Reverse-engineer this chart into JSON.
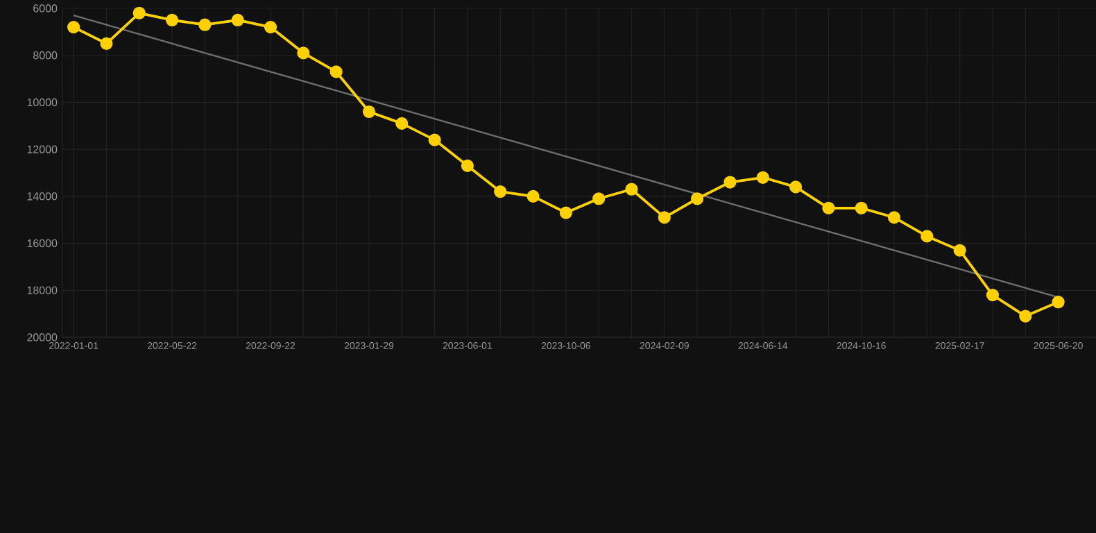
{
  "chart_data": {
    "type": "line",
    "categories": [
      "2022-01-01",
      null,
      null,
      "2022-05-22",
      null,
      null,
      "2022-09-22",
      null,
      null,
      "2023-01-29",
      null,
      null,
      "2023-06-01",
      null,
      null,
      "2023-10-06",
      null,
      null,
      "2024-02-09",
      null,
      null,
      "2024-06-14",
      null,
      null,
      "2024-10-16",
      null,
      null,
      "2025-02-17",
      null,
      null,
      "2025-06-20"
    ],
    "series": [
      {
        "color": "#ffd000",
        "values": [
          6800,
          7500,
          6200,
          6500,
          6700,
          6500,
          6800,
          7900,
          8700,
          10400,
          10900,
          11600,
          12700,
          13800,
          14000,
          14700,
          14100,
          13700,
          14900,
          14100,
          13400,
          13200,
          13600,
          14500,
          14500,
          14900,
          15700,
          16300,
          18200,
          19100,
          18500
        ]
      },
      {
        "type": "line",
        "color": "#6e6e6e",
        "marker": "none",
        "values": [
          6300,
          6700,
          7100,
          7500,
          7900,
          8300,
          8700,
          9100,
          9500,
          9900,
          10300,
          10700,
          11100,
          11500,
          11900,
          12300,
          12700,
          13100,
          13500,
          13900,
          14300,
          14700,
          15100,
          15500,
          15900,
          16300,
          16700,
          17100,
          17500,
          17900,
          18300
        ]
      }
    ],
    "ylim": [
      20000,
      6000
    ],
    "yticks": [
      6000,
      8000,
      10000,
      12000,
      14000,
      16000,
      18000,
      20000
    ],
    "grid": true,
    "marker": "circle",
    "line_style": "solid"
  }
}
